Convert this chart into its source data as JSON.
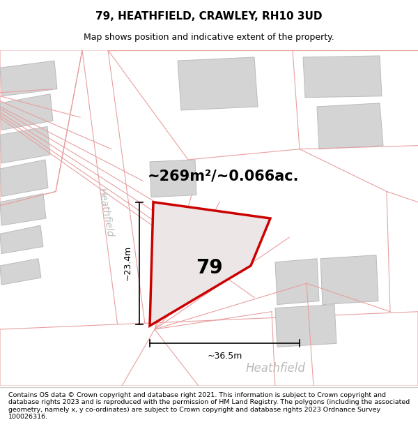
{
  "title": "79, HEATHFIELD, CRAWLEY, RH10 3UD",
  "subtitle": "Map shows position and indicative extent of the property.",
  "footer": "Contains OS data © Crown copyright and database right 2021. This information is subject to Crown copyright and database rights 2023 and is reproduced with the permission of HM Land Registry. The polygons (including the associated geometry, namely x, y co-ordinates) are subject to Crown copyright and database rights 2023 Ordnance Survey 100026316.",
  "bg_color": "#f2f2f2",
  "road_ec": "#e8a0a0",
  "road_fill": "#ffffff",
  "building_fill": "#d4d4d4",
  "building_ec": "#bbbbbb",
  "parcel_fill": "#ece6e6",
  "parcel_ec": "#cc0000",
  "dim_color": "#000000",
  "street_color": "#bbbbbb",
  "area_text": "~269m²/~0.066ac.",
  "parcel_label": "79",
  "dim_v": "~23.4m",
  "dim_h": "~36.5m",
  "street_diag": "Heathfield",
  "street_bottom": "Heathfield",
  "title_fontsize": 11,
  "subtitle_fontsize": 9,
  "footer_fontsize": 6.8,
  "area_fontsize": 15,
  "parcel_fontsize": 20,
  "dim_fontsize": 9,
  "street_fontsize": 10
}
